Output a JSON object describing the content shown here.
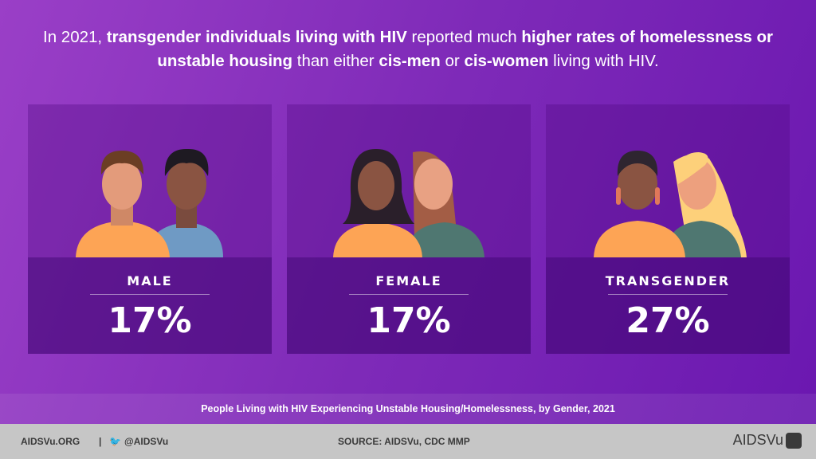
{
  "headline": {
    "parts": [
      {
        "text": "In 2021, ",
        "bold": false
      },
      {
        "text": "transgender individuals living with HIV",
        "bold": true
      },
      {
        "text": " reported much ",
        "bold": false
      },
      {
        "text": "higher rates of homelessness or unstable housing",
        "bold": true
      },
      {
        "text": " than either ",
        "bold": false
      },
      {
        "text": "cis-men",
        "bold": true
      },
      {
        "text": " or ",
        "bold": false
      },
      {
        "text": "cis-women",
        "bold": true
      },
      {
        "text": " living with HIV.",
        "bold": false
      }
    ]
  },
  "cards": [
    {
      "label": "MALE",
      "value": "17%",
      "percent": 17
    },
    {
      "label": "FEMALE",
      "value": "17%",
      "percent": 17
    },
    {
      "label": "TRANSGENDER",
      "value": "27%",
      "percent": 27
    }
  ],
  "caption": "People Living with HIV Experiencing Unstable Housing/Homelessness, by Gender, 2021",
  "footer": {
    "site": "AIDSVu.ORG",
    "separator": "|",
    "twitter": "@AIDSVu",
    "twitter_icon": "twitter-bird-icon",
    "source": "SOURCE: AIDSVu, CDC MMP",
    "logo": "AIDSVu"
  },
  "colors": {
    "orange_shirt": "#fda455",
    "blue_shirt": "#6f9ac4",
    "green_shirt": "#4f7771",
    "footer_bg": "#c6c6c6"
  }
}
